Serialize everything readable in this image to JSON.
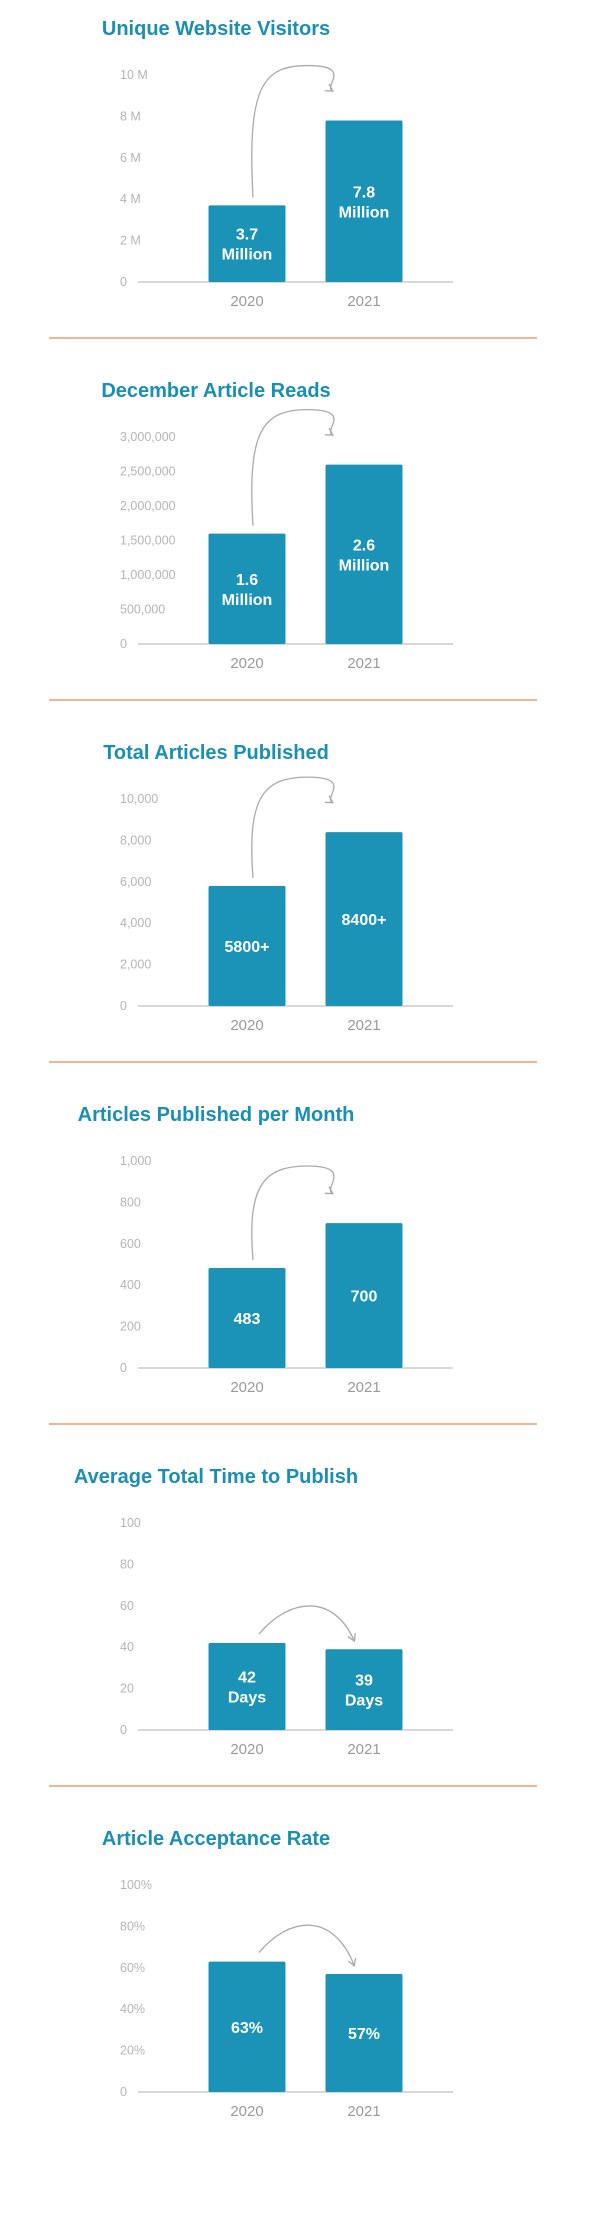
{
  "chart_data": [
    {
      "type": "bar",
      "title": "Unique Website Visitors",
      "categories": [
        "2020",
        "2021"
      ],
      "values": [
        3.7,
        7.8
      ],
      "value_unit": "million",
      "bar_labels": [
        [
          "3.7",
          "Million"
        ],
        [
          "7.8",
          "Million"
        ]
      ],
      "yticks": [
        "0",
        "2 M",
        "4 M",
        "6 M",
        "8 M",
        "10 M"
      ],
      "ylim": [
        0,
        10
      ],
      "arrow": "up"
    },
    {
      "type": "bar",
      "title": "December Article Reads",
      "categories": [
        "2020",
        "2021"
      ],
      "values": [
        1600000,
        2600000
      ],
      "bar_labels": [
        [
          "1.6",
          "Million"
        ],
        [
          "2.6",
          "Million"
        ]
      ],
      "yticks": [
        "0",
        "500,000",
        "1,000,000",
        "1,500,000",
        "2,000,000",
        "2,500,000",
        "3,000,000"
      ],
      "ylim": [
        0,
        3000000
      ],
      "arrow": "up"
    },
    {
      "type": "bar",
      "title": "Total Articles Published",
      "categories": [
        "2020",
        "2021"
      ],
      "values": [
        5800,
        8400
      ],
      "bar_labels": [
        [
          "5800+"
        ],
        [
          "8400+"
        ]
      ],
      "yticks": [
        "0",
        "2,000",
        "4,000",
        "6,000",
        "8,000",
        "10,000"
      ],
      "ylim": [
        0,
        10000
      ],
      "arrow": "up"
    },
    {
      "type": "bar",
      "title": "Articles Published per Month",
      "categories": [
        "2020",
        "2021"
      ],
      "values": [
        483,
        700
      ],
      "bar_labels": [
        [
          "483"
        ],
        [
          "700"
        ]
      ],
      "yticks": [
        "0",
        "200",
        "400",
        "600",
        "800",
        "1,000"
      ],
      "ylim": [
        0,
        1000
      ],
      "arrow": "up"
    },
    {
      "type": "bar",
      "title": "Average Total Time to Publish",
      "categories": [
        "2020",
        "2021"
      ],
      "values": [
        42,
        39
      ],
      "value_unit": "days",
      "bar_labels": [
        [
          "42",
          "Days"
        ],
        [
          "39",
          "Days"
        ]
      ],
      "yticks": [
        "0",
        "20",
        "40",
        "60",
        "80",
        "100"
      ],
      "ylim": [
        0,
        100
      ],
      "arrow": "down"
    },
    {
      "type": "bar",
      "title": "Article Acceptance Rate",
      "categories": [
        "2020",
        "2021"
      ],
      "values": [
        63,
        57
      ],
      "value_unit": "percent",
      "bar_labels": [
        [
          "63%"
        ],
        [
          "57%"
        ]
      ],
      "yticks": [
        "0",
        "20%",
        "40%",
        "60%",
        "80%",
        "100%"
      ],
      "ylim": [
        0,
        100
      ],
      "arrow": "down"
    }
  ],
  "colors": {
    "title": "#1a8fb4",
    "bar": "#1a93b6",
    "axis": "#cccccc",
    "tick_text": "#b5b5b5",
    "category_text": "#9a9a9a",
    "arrow": "#aaaaaa",
    "divider": "#f4b48f"
  },
  "icons": {
    "trend_arrow": "curved-arrow-icon"
  }
}
